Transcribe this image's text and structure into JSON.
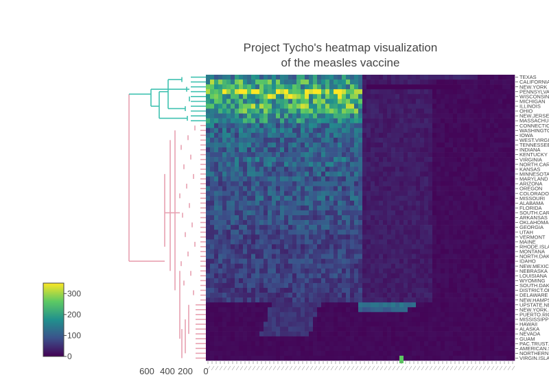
{
  "chart_data": {
    "type": "heatmap",
    "title_line1": "Project Tycho's heatmap visualization",
    "title_line2": "of the measles vaccine",
    "colorscale": [
      "#440154",
      "#3b528b",
      "#21908d",
      "#5dc963",
      "#fde725"
    ],
    "color_range": [
      0,
      350
    ],
    "colorbar_ticks": [
      0,
      100,
      200,
      300
    ],
    "dendrogram_axis_ticks": [
      "600",
      "400",
      "200",
      "0"
    ],
    "dendrogram_colors": {
      "upper_cluster": "#3fc1b0",
      "lower_cluster": "#e8a0b0"
    },
    "n_columns": 75,
    "rows": [
      {
        "label": "TEXAS",
        "level": 0.42,
        "cluster": 1
      },
      {
        "label": "CALIFORNIA",
        "level": 0.62,
        "cluster": 1
      },
      {
        "label": "NEW.YORK",
        "level": 0.55,
        "cluster": 1
      },
      {
        "label": "PENNSYLVANIA",
        "level": 0.85,
        "cluster": 1
      },
      {
        "label": "WISCONSIN",
        "level": 0.7,
        "cluster": 1
      },
      {
        "label": "MICHIGAN",
        "level": 0.6,
        "cluster": 1
      },
      {
        "label": "ILLINOIS",
        "level": 0.66,
        "cluster": 1
      },
      {
        "label": "OHIO",
        "level": 0.6,
        "cluster": 1
      },
      {
        "label": "NEW.JERSEY",
        "level": 0.5,
        "cluster": 1
      },
      {
        "label": "MASSACHUSETTS",
        "level": 0.48,
        "cluster": 1
      },
      {
        "label": "CONNECTICUT",
        "level": 0.34,
        "cluster": 2
      },
      {
        "label": "WASHINGTON",
        "level": 0.34,
        "cluster": 2
      },
      {
        "label": "IOWA",
        "level": 0.32,
        "cluster": 2
      },
      {
        "label": "WEST.VIRGINIA",
        "level": 0.3,
        "cluster": 2
      },
      {
        "label": "TENNESSEE",
        "level": 0.32,
        "cluster": 2
      },
      {
        "label": "INDIANA",
        "level": 0.31,
        "cluster": 2
      },
      {
        "label": "KENTUCKY",
        "level": 0.3,
        "cluster": 2
      },
      {
        "label": "VIRGINIA",
        "level": 0.33,
        "cluster": 2
      },
      {
        "label": "NORTH.CAROLINA",
        "level": 0.32,
        "cluster": 2
      },
      {
        "label": "KANSAS",
        "level": 0.28,
        "cluster": 2
      },
      {
        "label": "MINNESOTA",
        "level": 0.3,
        "cluster": 2
      },
      {
        "label": "MARYLAND",
        "level": 0.28,
        "cluster": 2
      },
      {
        "label": "ARIZONA",
        "level": 0.26,
        "cluster": 2
      },
      {
        "label": "OREGON",
        "level": 0.27,
        "cluster": 2
      },
      {
        "label": "COLORADO",
        "level": 0.27,
        "cluster": 2
      },
      {
        "label": "MISSOURI",
        "level": 0.29,
        "cluster": 2
      },
      {
        "label": "ALABAMA",
        "level": 0.27,
        "cluster": 2
      },
      {
        "label": "FLORIDA",
        "level": 0.26,
        "cluster": 2
      },
      {
        "label": "SOUTH.CAROLINA",
        "level": 0.26,
        "cluster": 2
      },
      {
        "label": "ARKANSAS",
        "level": 0.24,
        "cluster": 2
      },
      {
        "label": "OKLAHOMA",
        "level": 0.25,
        "cluster": 2
      },
      {
        "label": "GEORGIA",
        "level": 0.24,
        "cluster": 2
      },
      {
        "label": "UTAH",
        "level": 0.22,
        "cluster": 2
      },
      {
        "label": "VERMONT",
        "level": 0.2,
        "cluster": 2
      },
      {
        "label": "MAINE",
        "level": 0.2,
        "cluster": 2
      },
      {
        "label": "RHODE.ISLAND",
        "level": 0.19,
        "cluster": 2
      },
      {
        "label": "MONTANA",
        "level": 0.2,
        "cluster": 2
      },
      {
        "label": "NORTH.DAKOTA",
        "level": 0.21,
        "cluster": 2
      },
      {
        "label": "IDAHO",
        "level": 0.2,
        "cluster": 2
      },
      {
        "label": "NEW.MEXICO",
        "level": 0.19,
        "cluster": 2
      },
      {
        "label": "NEBRASKA",
        "level": 0.2,
        "cluster": 2
      },
      {
        "label": "LOUISIANA",
        "level": 0.2,
        "cluster": 2
      },
      {
        "label": "WYOMING",
        "level": 0.18,
        "cluster": 2
      },
      {
        "label": "SOUTH.DAKOTA",
        "level": 0.19,
        "cluster": 2
      },
      {
        "label": "DISTRICT.OF.COLUMBIA",
        "level": 0.17,
        "cluster": 2
      },
      {
        "label": "DELAWARE",
        "level": 0.17,
        "cluster": 2
      },
      {
        "label": "NEW.HAMPSHIRE",
        "level": 0.16,
        "cluster": 2
      },
      {
        "label": "UPSTATE.NEW.YORK",
        "level": 0.03,
        "cluster": 3
      },
      {
        "label": "NEW.YORK.CITY",
        "level": 0.03,
        "cluster": 3
      },
      {
        "label": "PUERTO.RICO",
        "level": 0.02,
        "cluster": 3
      },
      {
        "label": "MISSISSIPPI",
        "level": 0.03,
        "cluster": 3
      },
      {
        "label": "HAWAII",
        "level": 0.03,
        "cluster": 3
      },
      {
        "label": "ALASKA",
        "level": 0.02,
        "cluster": 3
      },
      {
        "label": "NEVADA",
        "level": 0.03,
        "cluster": 3
      },
      {
        "label": "GUAM",
        "level": 0.0,
        "cluster": 3
      },
      {
        "label": "PAC.TRUST.TERR",
        "level": 0.0,
        "cluster": 3
      },
      {
        "label": "AMERICAN.SAMOA",
        "level": 0.0,
        "cluster": 3
      },
      {
        "label": "NORTHERN.MARIANA.ISLANDS",
        "level": 0.0,
        "cluster": 3
      },
      {
        "label": "VIRGIN.ISLANDS",
        "level": 0.0,
        "cluster": 3
      }
    ]
  }
}
